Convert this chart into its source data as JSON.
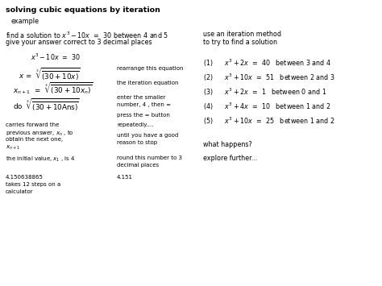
{
  "title": "solving cubic equations by iteration",
  "bg_color": "#ffffff",
  "text_color": "#000000",
  "title_fontsize": 6.8,
  "body_fontsize": 5.8,
  "small_fontsize": 5.0
}
